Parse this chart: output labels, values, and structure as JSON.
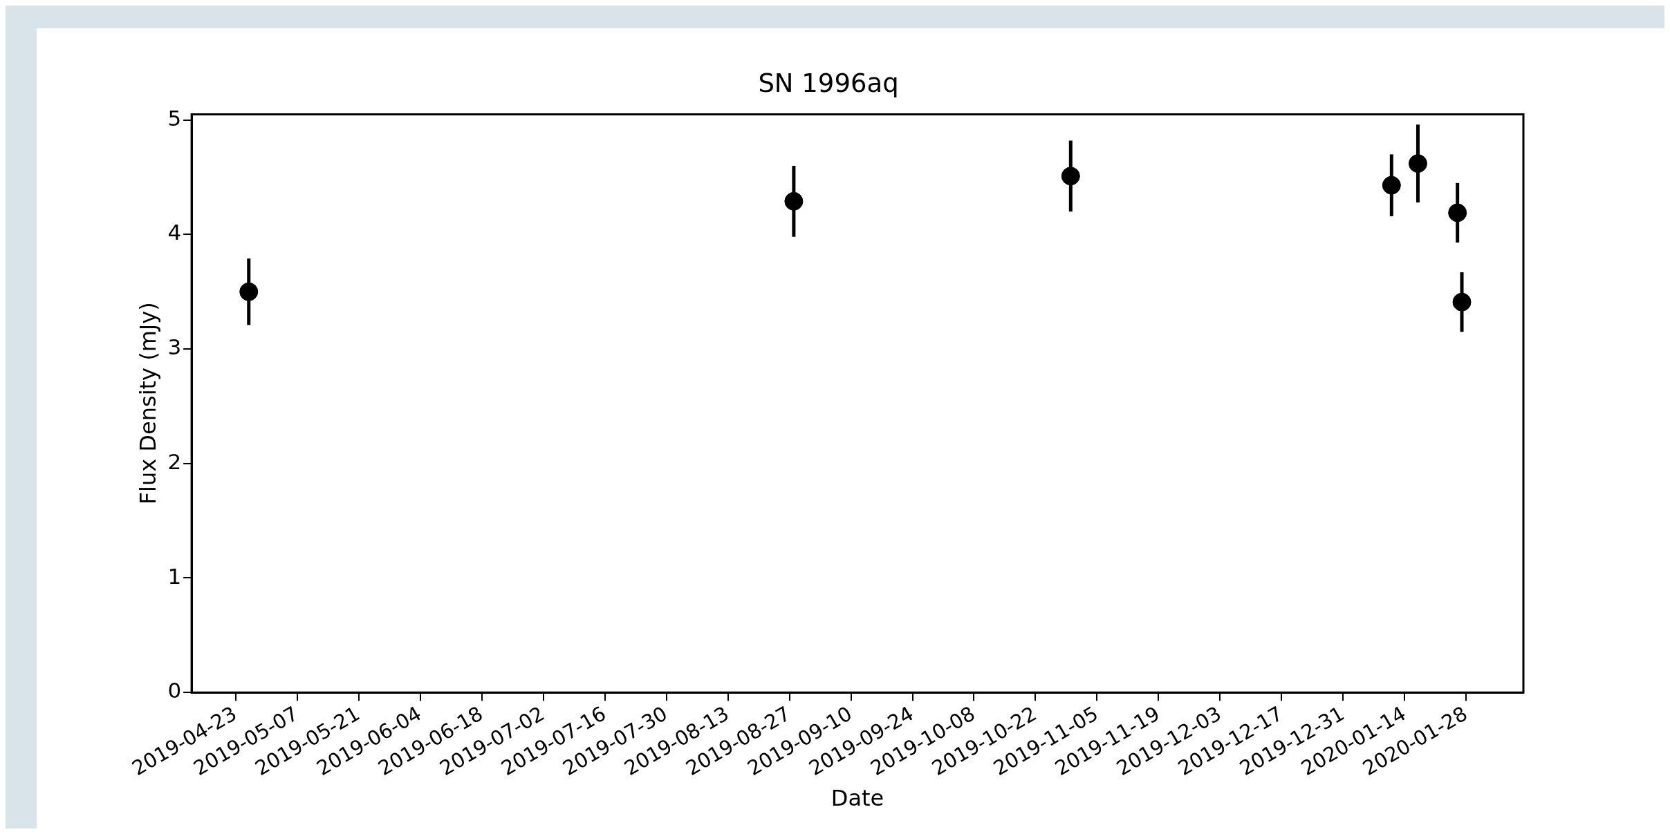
{
  "chart_data": {
    "type": "scatter",
    "title": "SN 1996aq",
    "xlabel": "Date",
    "ylabel": "Flux Density (mJy)",
    "x": [
      "2019-04-26",
      "2019-08-28",
      "2019-10-30",
      "2020-01-11",
      "2020-01-17",
      "2020-01-26",
      "2020-01-27"
    ],
    "series": [
      {
        "color": "#000000",
        "values": [
          3.5,
          4.29,
          4.51,
          4.43,
          4.62,
          4.19,
          3.41
        ],
        "errors": [
          0.29,
          0.31,
          0.31,
          0.27,
          0.34,
          0.26,
          0.26
        ]
      }
    ],
    "xlim": [
      "2019-04-13",
      "2020-02-10"
    ],
    "xticks": [
      "2019-04-23",
      "2019-05-07",
      "2019-05-21",
      "2019-06-04",
      "2019-06-18",
      "2019-07-02",
      "2019-07-16",
      "2019-07-30",
      "2019-08-13",
      "2019-08-27",
      "2019-09-10",
      "2019-09-24",
      "2019-10-08",
      "2019-10-22",
      "2019-11-05",
      "2019-11-19",
      "2019-12-03",
      "2019-12-17",
      "2019-12-31",
      "2020-01-14",
      "2020-01-28"
    ],
    "ylim": [
      0,
      5.05
    ],
    "yticks": [
      0,
      1,
      2,
      3,
      4,
      5
    ],
    "marker": "circle",
    "grid": false,
    "legend": false
  }
}
